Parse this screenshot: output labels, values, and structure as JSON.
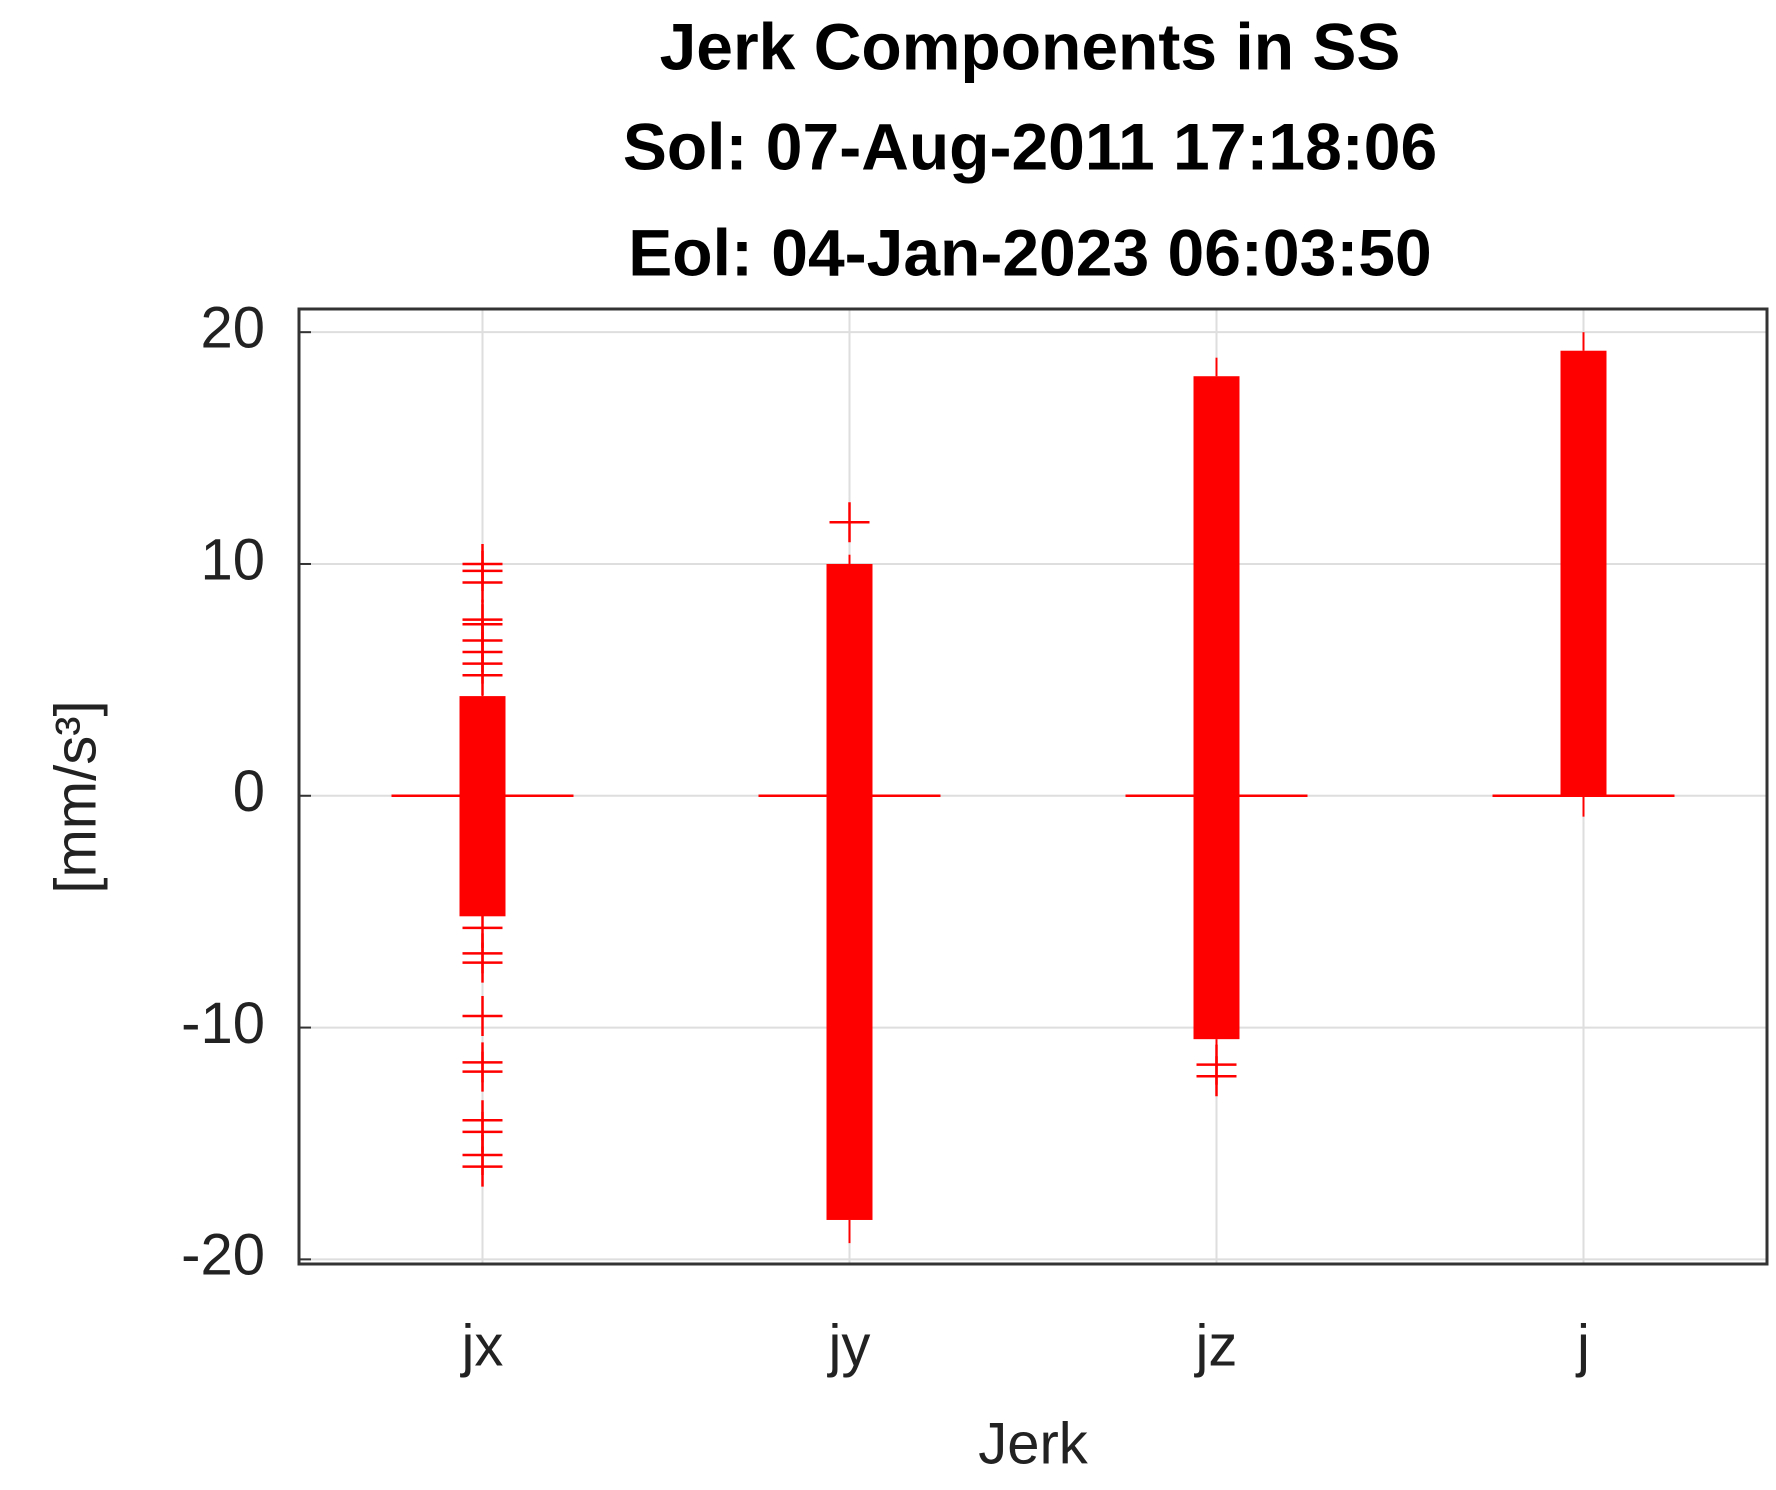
{
  "chart_data": {
    "type": "box",
    "title": [
      "Jerk Components in SS",
      "Sol: 07-Aug-2011 17:18:06",
      "Eol: 04-Jan-2023 06:03:50"
    ],
    "xlabel": "Jerk",
    "ylabel": "[mm/s³]",
    "categories": [
      "jx",
      "jy",
      "jz",
      "j"
    ],
    "color": "#ff0000",
    "boxes": [
      {
        "q1": -5.2,
        "median": 0,
        "q3": 4.3,
        "whisker_low": -5.5,
        "whisker_high": 4.7,
        "outliers": [
          10,
          9.7,
          9.2,
          7.6,
          7.4,
          6.7,
          6.2,
          5.7,
          5.2,
          -5.7,
          -6.8,
          -7.2,
          -9.5,
          -11.5,
          -11.9,
          -14,
          -14.5,
          -15.5,
          -16
        ]
      },
      {
        "q1": -18.3,
        "median": 0,
        "q3": 10,
        "whisker_low": -19.3,
        "whisker_high": 10.4,
        "outliers": [
          11.8
        ]
      },
      {
        "q1": -10.5,
        "median": 0,
        "q3": 18.1,
        "whisker_low": -11,
        "whisker_high": 18.9,
        "outliers": [
          -11.6,
          -12.1
        ]
      },
      {
        "q1": 0,
        "median": 0,
        "q3": 19.2,
        "whisker_low": -0.9,
        "whisker_high": 20,
        "outliers": []
      }
    ],
    "ylim": [
      -20.2,
      21
    ],
    "yticks": [
      -20,
      -10,
      0,
      10,
      20
    ],
    "grid": true
  }
}
